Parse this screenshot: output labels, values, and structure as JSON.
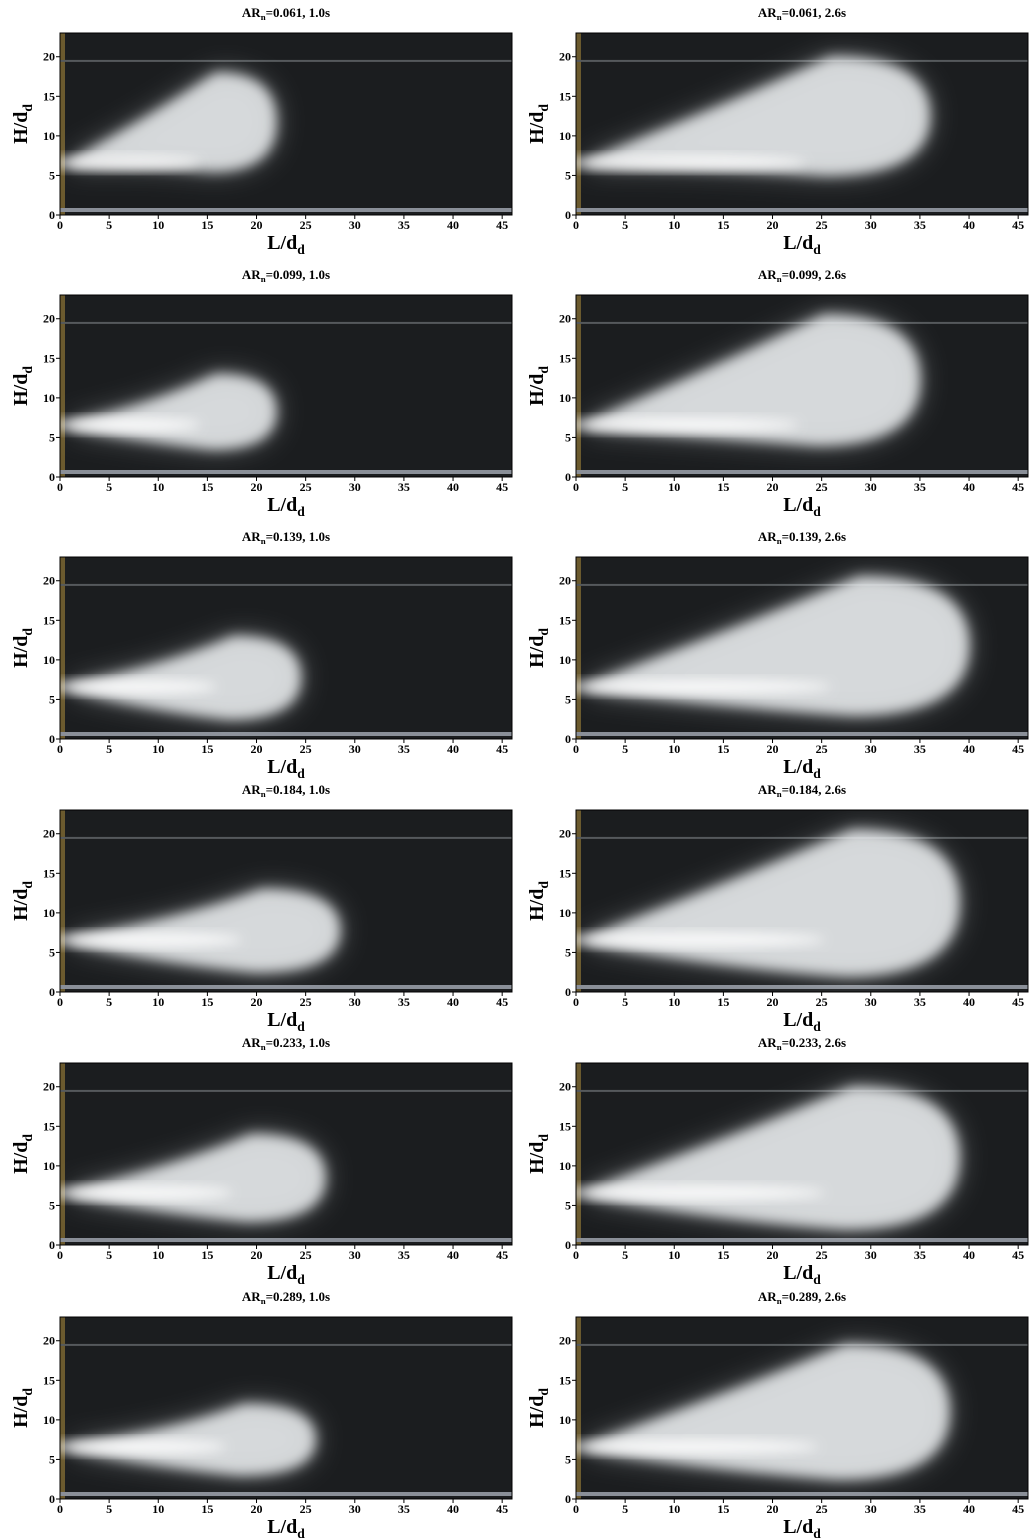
{
  "panels": [
    {
      "title": {
        "text": "AR",
        "sub": "n",
        "rest": "=0.061, 1.0s"
      },
      "xlabel": {
        "text": "L/d",
        "sub": "d"
      },
      "ylabel": {
        "text": "H/d",
        "sub": "d"
      },
      "xlim": [
        0,
        46
      ],
      "ylim": [
        0,
        23
      ],
      "xticks": [
        0,
        5,
        10,
        15,
        20,
        25,
        30,
        35,
        40,
        45
      ],
      "yticks": [
        0,
        5,
        10,
        15,
        20
      ]
    },
    {
      "title": {
        "text": "AR",
        "sub": "n",
        "rest": "=0.061, 2.6s"
      },
      "xlabel": {
        "text": "L/d",
        "sub": "d"
      },
      "ylabel": {
        "text": "H/d",
        "sub": "d"
      },
      "xlim": [
        0,
        46
      ],
      "ylim": [
        0,
        23
      ],
      "xticks": [
        0,
        5,
        10,
        15,
        20,
        25,
        30,
        35,
        40,
        45
      ],
      "yticks": [
        0,
        5,
        10,
        15,
        20
      ]
    },
    {
      "title": {
        "text": "AR",
        "sub": "n",
        "rest": "=0.099, 1.0s"
      },
      "xlabel": {
        "text": "L/d",
        "sub": "d"
      },
      "ylabel": {
        "text": "H/d",
        "sub": "d"
      },
      "xlim": [
        0,
        46
      ],
      "ylim": [
        0,
        23
      ],
      "xticks": [
        0,
        5,
        10,
        15,
        20,
        25,
        30,
        35,
        40,
        45
      ],
      "yticks": [
        0,
        5,
        10,
        15,
        20
      ]
    },
    {
      "title": {
        "text": "AR",
        "sub": "n",
        "rest": "=0.099, 2.6s"
      },
      "xlabel": {
        "text": "L/d",
        "sub": "d"
      },
      "ylabel": {
        "text": "H/d",
        "sub": "d"
      },
      "xlim": [
        0,
        46
      ],
      "ylim": [
        0,
        23
      ],
      "xticks": [
        0,
        5,
        10,
        15,
        20,
        25,
        30,
        35,
        40,
        45
      ],
      "yticks": [
        0,
        5,
        10,
        15,
        20
      ]
    },
    {
      "title": {
        "text": "AR",
        "sub": "n",
        "rest": "=0.139, 1.0s"
      },
      "xlabel": {
        "text": "L/d",
        "sub": "d"
      },
      "ylabel": {
        "text": "H/d",
        "sub": "d"
      },
      "xlim": [
        0,
        46
      ],
      "ylim": [
        0,
        23
      ],
      "xticks": [
        0,
        5,
        10,
        15,
        20,
        25,
        30,
        35,
        40,
        45
      ],
      "yticks": [
        0,
        5,
        10,
        15,
        20
      ]
    },
    {
      "title": {
        "text": "AR",
        "sub": "n",
        "rest": "=0.139, 2.6s"
      },
      "xlabel": {
        "text": "L/d",
        "sub": "d"
      },
      "ylabel": {
        "text": "H/d",
        "sub": "d"
      },
      "xlim": [
        0,
        46
      ],
      "ylim": [
        0,
        23
      ],
      "xticks": [
        0,
        5,
        10,
        15,
        20,
        25,
        30,
        35,
        40,
        45
      ],
      "yticks": [
        0,
        5,
        10,
        15,
        20
      ]
    },
    {
      "title": {
        "text": "AR",
        "sub": "n",
        "rest": "=0.184, 1.0s"
      },
      "xlabel": {
        "text": "L/d",
        "sub": "d"
      },
      "ylabel": {
        "text": "H/d",
        "sub": "d"
      },
      "xlim": [
        0,
        46
      ],
      "ylim": [
        0,
        23
      ],
      "xticks": [
        0,
        5,
        10,
        15,
        20,
        25,
        30,
        35,
        40,
        45
      ],
      "yticks": [
        0,
        5,
        10,
        15,
        20
      ]
    },
    {
      "title": {
        "text": "AR",
        "sub": "n",
        "rest": "=0.184, 2.6s"
      },
      "xlabel": {
        "text": "L/d",
        "sub": "d"
      },
      "ylabel": {
        "text": "H/d",
        "sub": "d"
      },
      "xlim": [
        0,
        46
      ],
      "ylim": [
        0,
        23
      ],
      "xticks": [
        0,
        5,
        10,
        15,
        20,
        25,
        30,
        35,
        40,
        45
      ],
      "yticks": [
        0,
        5,
        10,
        15,
        20
      ]
    },
    {
      "title": {
        "text": "AR",
        "sub": "n",
        "rest": "=0.233, 1.0s"
      },
      "xlabel": {
        "text": "L/d",
        "sub": "d"
      },
      "ylabel": {
        "text": "H/d",
        "sub": "d"
      },
      "xlim": [
        0,
        46
      ],
      "ylim": [
        0,
        23
      ],
      "xticks": [
        0,
        5,
        10,
        15,
        20,
        25,
        30,
        35,
        40,
        45
      ],
      "yticks": [
        0,
        5,
        10,
        15,
        20
      ]
    },
    {
      "title": {
        "text": "AR",
        "sub": "n",
        "rest": "=0.233, 2.6s"
      },
      "xlabel": {
        "text": "L/d",
        "sub": "d"
      },
      "ylabel": {
        "text": "H/d",
        "sub": "d"
      },
      "xlim": [
        0,
        46
      ],
      "ylim": [
        0,
        23
      ],
      "xticks": [
        0,
        5,
        10,
        15,
        20,
        25,
        30,
        35,
        40,
        45
      ],
      "yticks": [
        0,
        5,
        10,
        15,
        20
      ]
    },
    {
      "title": {
        "text": "AR",
        "sub": "n",
        "rest": "=0.289, 1.0s"
      },
      "xlabel": {
        "text": "L/d",
        "sub": "d"
      },
      "ylabel": {
        "text": "H/d",
        "sub": "d"
      },
      "xlim": [
        0,
        46
      ],
      "ylim": [
        0,
        23
      ],
      "xticks": [
        0,
        5,
        10,
        15,
        20,
        25,
        30,
        35,
        40,
        45
      ],
      "yticks": [
        0,
        5,
        10,
        15,
        20
      ]
    },
    {
      "title": {
        "text": "AR",
        "sub": "n",
        "rest": "=0.289, 2.6s"
      },
      "xlabel": {
        "text": "L/d",
        "sub": "d"
      },
      "ylabel": {
        "text": "H/d",
        "sub": "d"
      },
      "xlim": [
        0,
        46
      ],
      "ylim": [
        0,
        23
      ],
      "xticks": [
        0,
        5,
        10,
        15,
        20,
        25,
        30,
        35,
        40,
        45
      ],
      "yticks": [
        0,
        5,
        10,
        15,
        20
      ]
    }
  ]
}
